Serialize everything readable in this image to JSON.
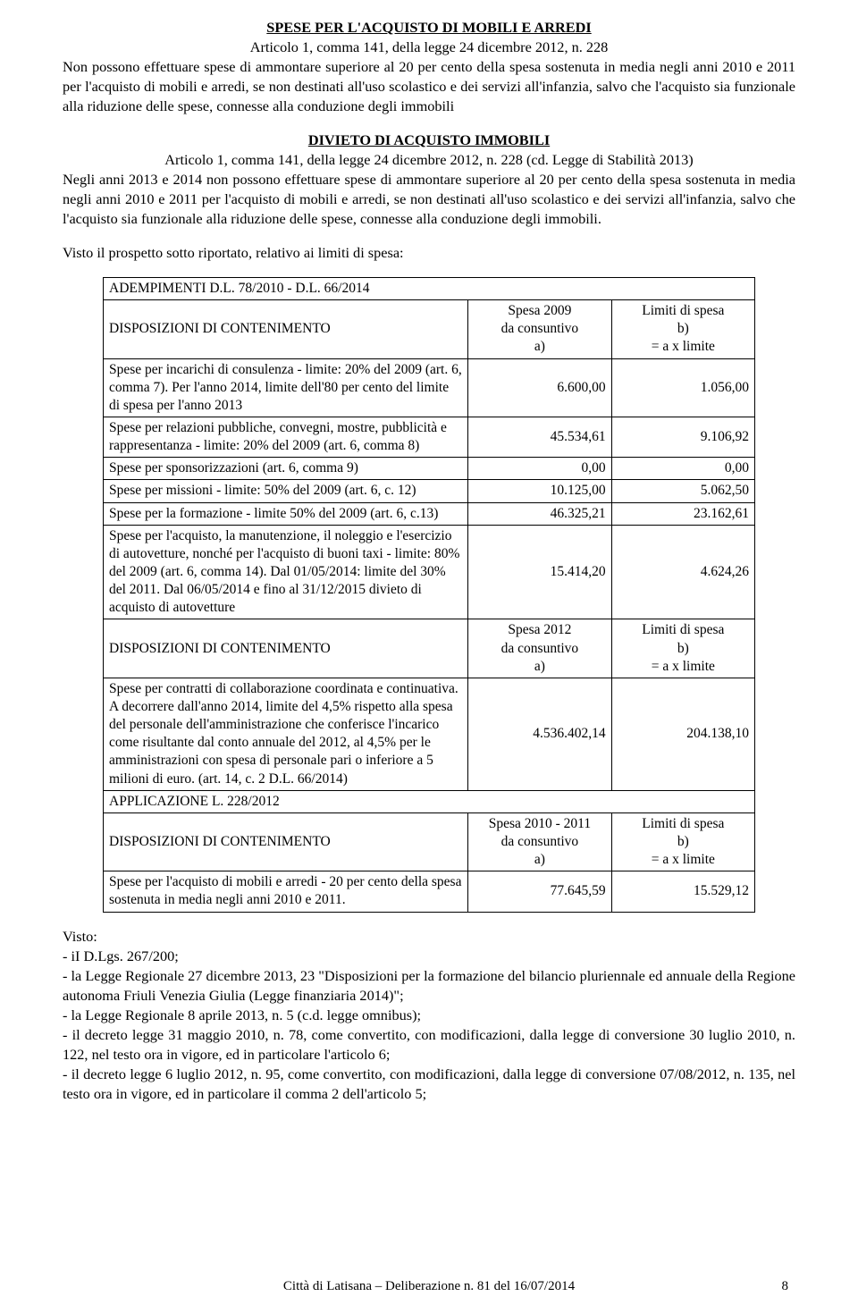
{
  "s1": {
    "title": "SPESE PER L'ACQUISTO DI MOBILI E ARREDI",
    "subtitle": "Articolo 1, comma 141, della legge 24 dicembre 2012, n. 228",
    "body": "Non possono effettuare spese di ammontare superiore al 20 per cento della spesa sostenuta in media negli anni 2010 e 2011 per l'acquisto di mobili e arredi, se non destinati all'uso scolastico e dei servizi all'infanzia, salvo che l'acquisto sia funzionale alla riduzione delle spese, connesse alla conduzione degli immobili"
  },
  "s2": {
    "title": "DIVIETO DI ACQUISTO IMMOBILI",
    "subtitle": "Articolo 1, comma 141, della legge 24 dicembre 2012, n. 228 (cd. Legge di Stabilità 2013)",
    "body": "Negli anni 2013 e 2014 non possono effettuare spese di ammontare superiore al 20 per cento della spesa sostenuta in media negli anni 2010 e 2011 per l'acquisto di mobili e arredi, se non destinati all'uso scolastico e dei servizi all'infanzia, salvo che l'acquisto sia funzionale alla riduzione delle spese, connesse alla conduzione degli immobili."
  },
  "prospetto": "Visto il prospetto sotto riportato, relativo ai limiti di spesa:",
  "table": {
    "caption": "ADEMPIMENTI D.L. 78/2010 - D.L. 66/2014",
    "hdr_disp": "DISPOSIZIONI DI CONTENIMENTO",
    "hdr_2009a": "Spesa 2009",
    "hdr_cons": "da consuntivo",
    "hdr_a": "a)",
    "hdr_lim": "Limiti di spesa",
    "hdr_b": "b)",
    "hdr_ax": "= a x limite",
    "hdr_2012a": "Spesa 2012",
    "hdr_applic": "APPLICAZIONE L. 228/2012",
    "hdr_2010_11": "Spesa 2010 - 2011",
    "rows": [
      {
        "d": "Spese per incarichi di consulenza - limite: 20% del 2009 (art. 6, comma 7). Per l'anno 2014, limite dell'80 per cento del limite di spesa per l'anno 2013",
        "v1": "6.600,00",
        "v2": "1.056,00"
      },
      {
        "d": "Spese per relazioni pubbliche, convegni, mostre, pubblicità e rappresentanza - limite: 20% del 2009 (art. 6, comma 8)",
        "v1": "45.534,61",
        "v2": "9.106,92"
      },
      {
        "d": "Spese per sponsorizzazioni (art. 6, comma 9)",
        "v1": "0,00",
        "v2": "0,00"
      },
      {
        "d": "Spese per missioni - limite: 50% del 2009 (art. 6, c. 12)",
        "v1": "10.125,00",
        "v2": "5.062,50"
      },
      {
        "d": "Spese per la formazione - limite 50% del 2009 (art. 6, c.13)",
        "v1": "46.325,21",
        "v2": "23.162,61"
      },
      {
        "d": "Spese per l'acquisto, la manutenzione, il noleggio e l'esercizio di autovetture, nonché per l'acquisto di buoni taxi - limite: 80% del 2009 (art. 6, comma 14). Dal 01/05/2014: limite del 30% del 2011. Dal 06/05/2014 e fino al 31/12/2015 divieto di acquisto di autovetture",
        "v1": "15.414,20",
        "v2": "4.624,26"
      }
    ],
    "row_collab": {
      "d": "Spese per contratti di collaborazione coordinata e continuativa. A decorrere dall'anno 2014, limite del 4,5% rispetto alla  spesa  del  personale dell'amministrazione che conferisce l'incarico come risultante dal conto annuale del 2012, al 4,5% per le amministrazioni con spesa di personale pari o inferiore a 5 milioni di euro. (art. 14, c. 2 D.L. 66/2014)",
      "v1": "4.536.402,14",
      "v2": "204.138,10"
    },
    "row_mobili": {
      "d": "Spese per l'acquisto di mobili e arredi - 20 per cento della spesa sostenuta in media negli anni 2010 e 2011.",
      "v1": "77.645,59",
      "v2": "15.529,12"
    }
  },
  "visto": {
    "head": "Visto:",
    "items": [
      "- iI D.Lgs. 267/200;",
      "- la Legge Regionale 27 dicembre 2013, 23 \"Disposizioni per la formazione del bilancio pluriennale ed annuale della Regione autonoma Friuli Venezia Giulia (Legge finanziaria 2014)\";",
      "- la Legge Regionale 8 aprile 2013, n. 5 (c.d. legge omnibus);",
      "- il decreto legge 31 maggio 2010, n. 78, come convertito, con modificazioni, dalla legge di conversione 30 luglio 2010, n. 122, nel testo ora in vigore, ed in particolare l'articolo 6;",
      "- il decreto legge 6 luglio 2012, n. 95, come convertito, con modificazioni, dalla legge di conversione 07/08/2012, n. 135, nel testo ora in vigore, ed in particolare il comma 2 dell'articolo 5;"
    ]
  },
  "footer": "Città di Latisana – Deliberazione n. 81 del 16/07/2014",
  "page_num": "8"
}
